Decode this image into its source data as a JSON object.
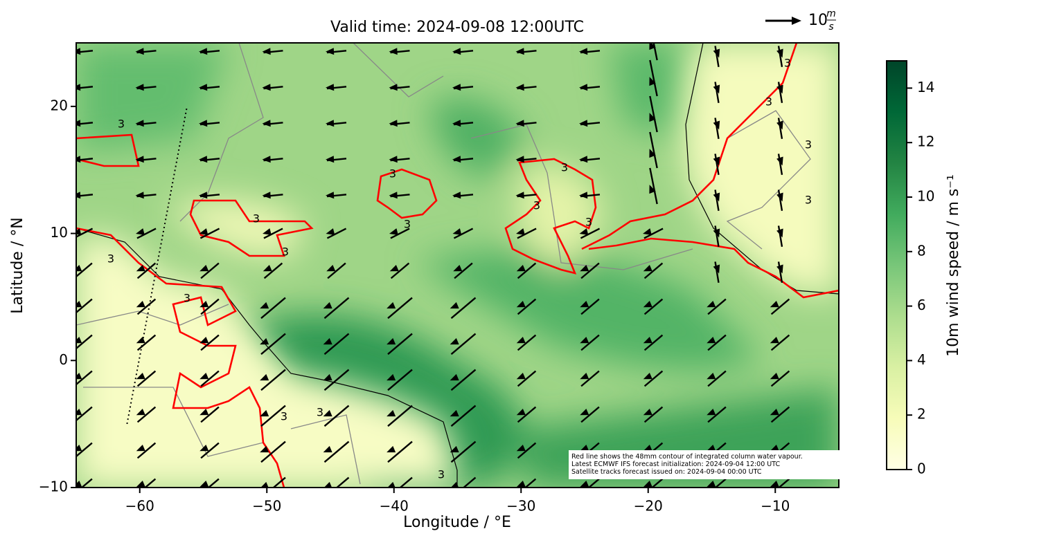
{
  "chart_data": {
    "type": "map",
    "title": "Valid time: 2024-09-08 12:00UTC",
    "x_label": "Longitude / °E",
    "y_label": "Latitude / °N",
    "xlim": [
      -65,
      -5
    ],
    "ylim": [
      -10,
      25
    ],
    "xticks": [
      {
        "value": -60,
        "label": "−60"
      },
      {
        "value": -50,
        "label": "−50"
      },
      {
        "value": -40,
        "label": "−40"
      },
      {
        "value": -30,
        "label": "−30"
      },
      {
        "value": -20,
        "label": "−20"
      },
      {
        "value": -10,
        "label": "−10"
      }
    ],
    "yticks": [
      {
        "value": -10,
        "label": "−10"
      },
      0,
      10,
      20
    ],
    "contour_label": "3",
    "contour_color": "#ff0000",
    "quiver_key": {
      "value": 10,
      "unit_numerator": "m",
      "unit_denominator": "s"
    },
    "colorbar": {
      "label": "10m wind speed / m s⁻¹",
      "lim": [
        0,
        15
      ],
      "ticks": [
        0,
        2,
        4,
        6,
        8,
        10,
        12,
        14
      ],
      "colors": [
        "#ffffe5",
        "#f7fcb9",
        "#d9f0a3",
        "#addd8e",
        "#78c679",
        "#41ab5d",
        "#238443",
        "#006837",
        "#004529"
      ]
    },
    "annotation": [
      "Red line shows the 48mm contour of integrated column water vapour.",
      "Latest ECMWF IFS forecast initialization: 2024-09-04 12:00 UTC",
      "Satellite tracks forecast issued on: 2024-09-04 00:00 UTC"
    ]
  }
}
